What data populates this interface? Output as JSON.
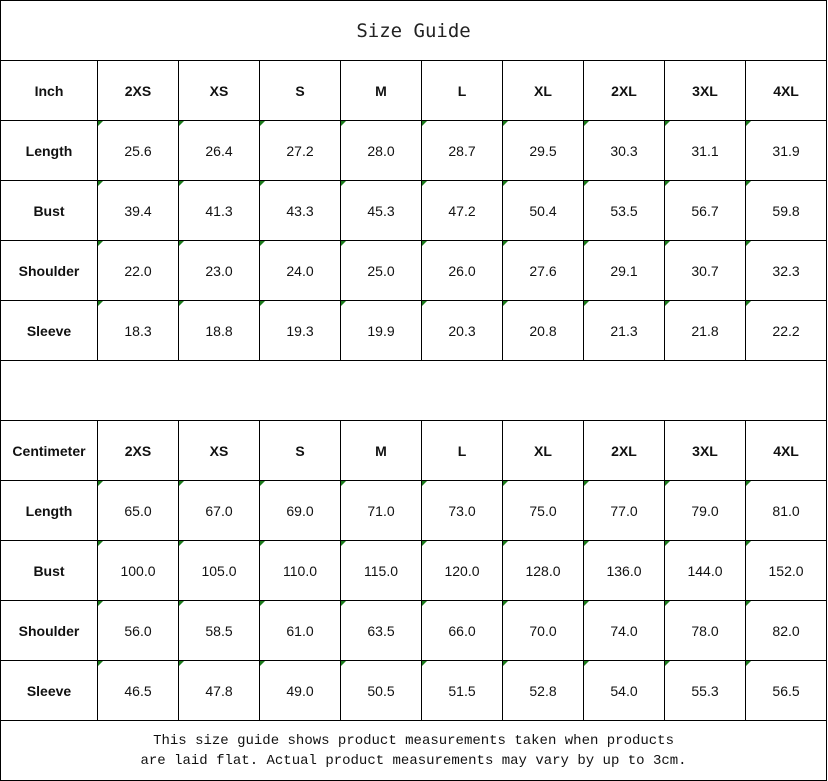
{
  "title": "Size Guide",
  "sizes": [
    "2XS",
    "XS",
    "S",
    "M",
    "L",
    "XL",
    "2XL",
    "3XL",
    "4XL"
  ],
  "inch": {
    "unit_label": "Inch",
    "rows": [
      {
        "label": "Length",
        "values": [
          "25.6",
          "26.4",
          "27.2",
          "28.0",
          "28.7",
          "29.5",
          "30.3",
          "31.1",
          "31.9"
        ]
      },
      {
        "label": "Bust",
        "values": [
          "39.4",
          "41.3",
          "43.3",
          "45.3",
          "47.2",
          "50.4",
          "53.5",
          "56.7",
          "59.8"
        ]
      },
      {
        "label": "Shoulder",
        "values": [
          "22.0",
          "23.0",
          "24.0",
          "25.0",
          "26.0",
          "27.6",
          "29.1",
          "30.7",
          "32.3"
        ]
      },
      {
        "label": "Sleeve",
        "values": [
          "18.3",
          "18.8",
          "19.3",
          "19.9",
          "20.3",
          "20.8",
          "21.3",
          "21.8",
          "22.2"
        ]
      }
    ]
  },
  "cm": {
    "unit_label": "Centimeter",
    "rows": [
      {
        "label": "Length",
        "values": [
          "65.0",
          "67.0",
          "69.0",
          "71.0",
          "73.0",
          "75.0",
          "77.0",
          "79.0",
          "81.0"
        ]
      },
      {
        "label": "Bust",
        "values": [
          "100.0",
          "105.0",
          "110.0",
          "115.0",
          "120.0",
          "128.0",
          "136.0",
          "144.0",
          "152.0"
        ]
      },
      {
        "label": "Shoulder",
        "values": [
          "56.0",
          "58.5",
          "61.0",
          "63.5",
          "66.0",
          "70.0",
          "74.0",
          "78.0",
          "82.0"
        ]
      },
      {
        "label": "Sleeve",
        "values": [
          "46.5",
          "47.8",
          "49.0",
          "50.5",
          "51.5",
          "52.8",
          "54.0",
          "55.3",
          "56.5"
        ]
      }
    ]
  },
  "note_lines": [
    "This size guide shows product measurements taken when products",
    "are laid flat. Actual product measurements may vary by up to 3cm."
  ],
  "colors": {
    "corner_marker": "#1a7a1a",
    "border": "#000000"
  }
}
